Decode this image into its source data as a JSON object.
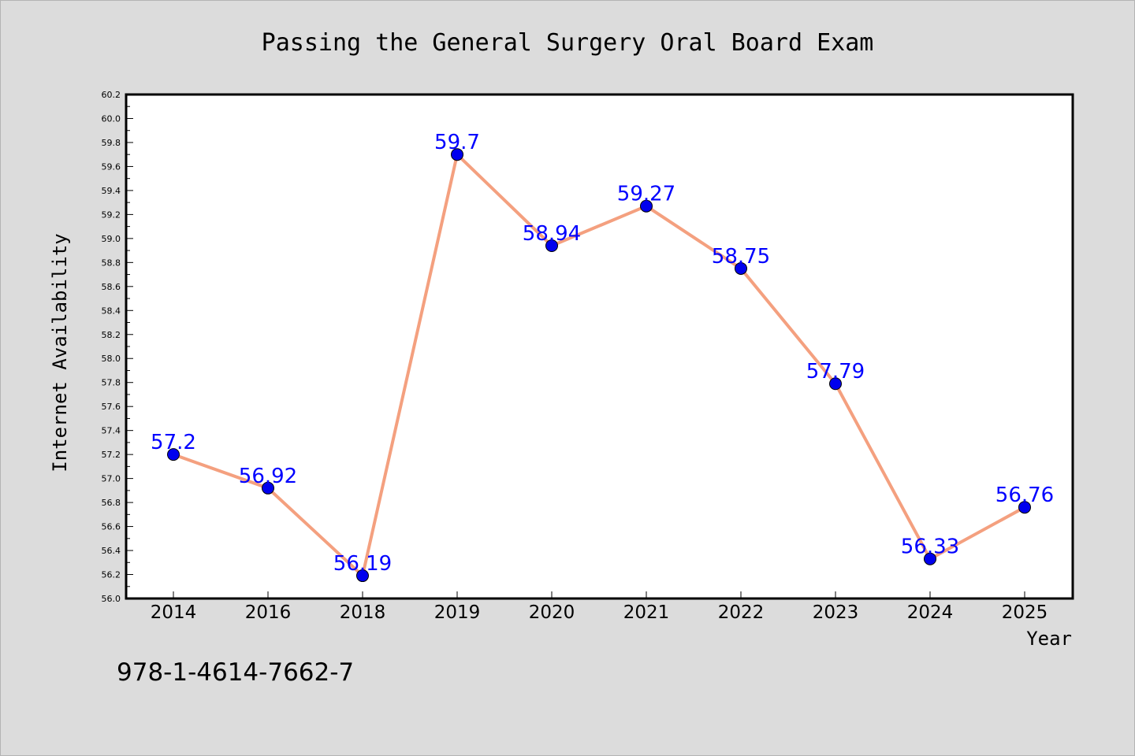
{
  "chart_data": {
    "type": "line",
    "title": "Passing the General Surgery Oral Board Exam",
    "xlabel": "Year",
    "ylabel": "Internet Availability",
    "categories": [
      "2014",
      "2016",
      "2018",
      "2019",
      "2020",
      "2021",
      "2022",
      "2023",
      "2024",
      "2025"
    ],
    "series": [
      {
        "values": [
          57.2,
          56.92,
          56.19,
          59.7,
          58.94,
          59.27,
          58.75,
          57.79,
          56.33,
          56.76
        ],
        "labels": [
          "57.2",
          "56.92",
          "56.19",
          "59.7",
          "58.94",
          "59.27",
          "58.75",
          "57.79",
          "56.33",
          "56.76"
        ],
        "line_color": "#f4a07f",
        "marker_color": "#0000ee",
        "label_color": "#0000ff"
      }
    ],
    "ylim": [
      56.0,
      60.2
    ],
    "yticks": [
      "56.0",
      "56.2",
      "56.4",
      "56.6",
      "56.8",
      "57.0",
      "57.2",
      "57.4",
      "57.6",
      "57.8",
      "58.0",
      "58.2",
      "58.4",
      "58.6",
      "58.8",
      "59.0",
      "59.2",
      "59.4",
      "59.6",
      "59.8",
      "60.0",
      "60.2"
    ],
    "grid": false,
    "legend": "none"
  },
  "annotation": "978-1-4614-7662-7",
  "colors": {
    "background": "#dcdcdc",
    "plot_background": "#ffffff"
  }
}
